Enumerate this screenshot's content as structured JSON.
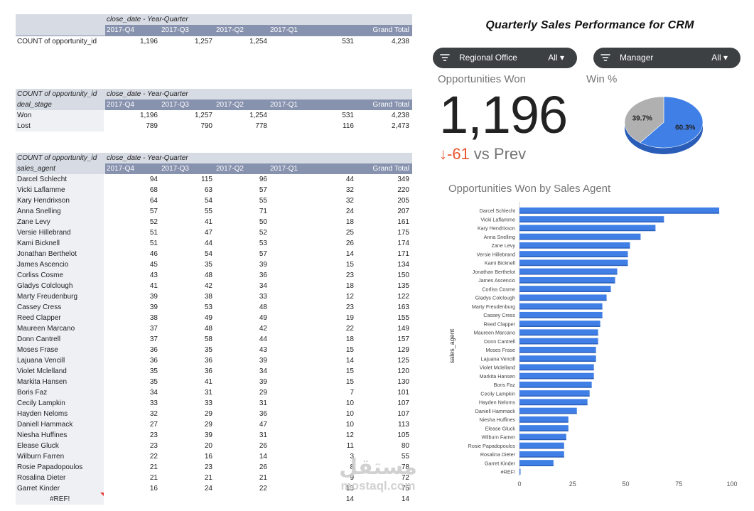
{
  "colors": {
    "header_band": "#8792ae",
    "header_light": "#d7dbe4",
    "bar": "#3f7fe6",
    "pie_won": "#3f7fe6",
    "pie_lost": "#b0b0b0",
    "filter_bg": "#3c4043",
    "negative": "#e8542f"
  },
  "pivot1": {
    "caption": "close_date - Year-Quarter",
    "columns": [
      "2017-Q4",
      "2017-Q3",
      "2017-Q2",
      "2017-Q1",
      "Grand Total"
    ],
    "row_label": "COUNT of opportunity_id",
    "values": [
      "1,196",
      "1,257",
      "1,254",
      "531",
      "4,238"
    ]
  },
  "pivot2": {
    "measure": "COUNT of opportunity_id",
    "caption": "close_date - Year-Quarter",
    "dimension": "deal_stage",
    "columns": [
      "2017-Q4",
      "2017-Q3",
      "2017-Q2",
      "2017-Q1",
      "Grand Total"
    ],
    "rows": [
      {
        "label": "Won",
        "values": [
          "1,196",
          "1,257",
          "1,254",
          "531",
          "4,238"
        ]
      },
      {
        "label": "Lost",
        "values": [
          "789",
          "790",
          "778",
          "116",
          "2,473"
        ]
      }
    ]
  },
  "pivot3": {
    "measure": "COUNT of opportunity_id",
    "caption": "close_date - Year-Quarter",
    "dimension": "sales_agent",
    "columns": [
      "2017-Q4",
      "2017-Q3",
      "2017-Q2",
      "2017-Q1",
      "Grand Total"
    ],
    "rows": [
      {
        "label": "Darcel Schlecht",
        "values": [
          "94",
          "115",
          "96",
          "44",
          "349"
        ]
      },
      {
        "label": "Vicki Laflamme",
        "values": [
          "68",
          "63",
          "57",
          "32",
          "220"
        ]
      },
      {
        "label": "Kary Hendrixson",
        "values": [
          "64",
          "54",
          "55",
          "32",
          "205"
        ]
      },
      {
        "label": "Anna Snelling",
        "values": [
          "57",
          "55",
          "71",
          "24",
          "207"
        ]
      },
      {
        "label": "Zane Levy",
        "values": [
          "52",
          "41",
          "50",
          "18",
          "161"
        ]
      },
      {
        "label": "Versie Hillebrand",
        "values": [
          "51",
          "47",
          "52",
          "25",
          "175"
        ]
      },
      {
        "label": "Kami Bicknell",
        "values": [
          "51",
          "44",
          "53",
          "26",
          "174"
        ]
      },
      {
        "label": "Jonathan Berthelot",
        "values": [
          "46",
          "54",
          "57",
          "14",
          "171"
        ]
      },
      {
        "label": "James Ascencio",
        "values": [
          "45",
          "35",
          "39",
          "15",
          "134"
        ]
      },
      {
        "label": "Corliss Cosme",
        "values": [
          "43",
          "48",
          "36",
          "23",
          "150"
        ]
      },
      {
        "label": "Gladys Colclough",
        "values": [
          "41",
          "42",
          "34",
          "18",
          "135"
        ]
      },
      {
        "label": "Marty Freudenburg",
        "values": [
          "39",
          "38",
          "33",
          "12",
          "122"
        ]
      },
      {
        "label": "Cassey Cress",
        "values": [
          "39",
          "53",
          "48",
          "23",
          "163"
        ]
      },
      {
        "label": "Reed Clapper",
        "values": [
          "38",
          "49",
          "49",
          "19",
          "155"
        ]
      },
      {
        "label": "Maureen Marcano",
        "values": [
          "37",
          "48",
          "42",
          "22",
          "149"
        ]
      },
      {
        "label": "Donn Cantrell",
        "values": [
          "37",
          "58",
          "44",
          "18",
          "157"
        ]
      },
      {
        "label": "Moses Frase",
        "values": [
          "36",
          "35",
          "43",
          "15",
          "129"
        ]
      },
      {
        "label": "Lajuana Vencill",
        "values": [
          "36",
          "36",
          "39",
          "14",
          "125"
        ]
      },
      {
        "label": "Violet Mclelland",
        "values": [
          "35",
          "36",
          "34",
          "15",
          "120"
        ]
      },
      {
        "label": "Markita Hansen",
        "values": [
          "35",
          "41",
          "39",
          "15",
          "130"
        ]
      },
      {
        "label": "Boris Faz",
        "values": [
          "34",
          "31",
          "29",
          "7",
          "101"
        ]
      },
      {
        "label": "Cecily Lampkin",
        "values": [
          "33",
          "33",
          "31",
          "10",
          "107"
        ]
      },
      {
        "label": "Hayden Neloms",
        "values": [
          "32",
          "29",
          "36",
          "10",
          "107"
        ]
      },
      {
        "label": "Daniell Hammack",
        "values": [
          "27",
          "29",
          "47",
          "10",
          "113"
        ]
      },
      {
        "label": "Niesha Huffines",
        "values": [
          "23",
          "39",
          "31",
          "12",
          "105"
        ]
      },
      {
        "label": "Elease Gluck",
        "values": [
          "23",
          "20",
          "26",
          "11",
          "80"
        ]
      },
      {
        "label": "Wilburn Farren",
        "values": [
          "22",
          "16",
          "14",
          "3",
          "55"
        ]
      },
      {
        "label": "Rosie Papadopoulos",
        "values": [
          "21",
          "23",
          "26",
          "8",
          "78"
        ]
      },
      {
        "label": "Rosalina Dieter",
        "values": [
          "21",
          "21",
          "21",
          "9",
          "72"
        ]
      },
      {
        "label": "Garret Kinder",
        "values": [
          "16",
          "24",
          "22",
          "13",
          "75"
        ]
      }
    ],
    "ref_row": {
      "label": "#REF!",
      "values": [
        "14",
        "14"
      ]
    }
  },
  "dashboard": {
    "title": "Quarterly Sales Performance for CRM",
    "filters": [
      {
        "label": "Regional Office",
        "value": "All ▾"
      },
      {
        "label": "Manager",
        "value": "All ▾"
      }
    ],
    "scorecard": {
      "label": "Opportunities Won",
      "value": "1,196",
      "delta_arrow": "↓",
      "delta": "-61",
      "delta_suffix": "vs Prev"
    },
    "pie_label": "Win %",
    "chart_title": "Opportunities Won by Sales Agent"
  },
  "watermark": "mostaql.com",
  "chart_data": [
    {
      "type": "pie",
      "title": "Win %",
      "slices": [
        {
          "name": "Won",
          "value": 60.3,
          "label": "60.3%"
        },
        {
          "name": "Lost",
          "value": 39.7,
          "label": "39.7%"
        }
      ]
    },
    {
      "type": "bar",
      "orientation": "horizontal",
      "title": "Opportunities Won by Sales Agent",
      "ylabel": "sales_agent",
      "xlabel": "",
      "xlim": [
        0,
        100
      ],
      "xticks": [
        "0",
        "25",
        "50",
        "75",
        "100"
      ],
      "categories": [
        "Darcel Schlecht",
        "Vicki Laflamme",
        "Kary Hendrixson",
        "Anna Snelling",
        "Zane Levy",
        "Versie Hillebrand",
        "Kami Bicknell",
        "Jonathan Berthelot",
        "James Ascencio",
        "Corliss Cosme",
        "Gladys Colclough",
        "Marty Freudenburg",
        "Cassey Cress",
        "Reed Clapper",
        "Maureen Marcano",
        "Donn Cantrell",
        "Moses Frase",
        "Lajuana Vencill",
        "Violet Mclelland",
        "Markita Hansen",
        "Boris Faz",
        "Cecily Lampkin",
        "Hayden Neloms",
        "Daniell Hammack",
        "Niesha Huffines",
        "Elease Gluck",
        "Wilburn Farren",
        "Rosie Papadopoulos",
        "Rosalina Dieter",
        "Garret Kinder",
        "#REF!"
      ],
      "values": [
        94,
        68,
        64,
        57,
        52,
        51,
        51,
        46,
        45,
        43,
        41,
        39,
        39,
        38,
        37,
        37,
        36,
        36,
        35,
        35,
        34,
        33,
        32,
        27,
        23,
        23,
        22,
        21,
        21,
        16,
        0
      ]
    }
  ]
}
